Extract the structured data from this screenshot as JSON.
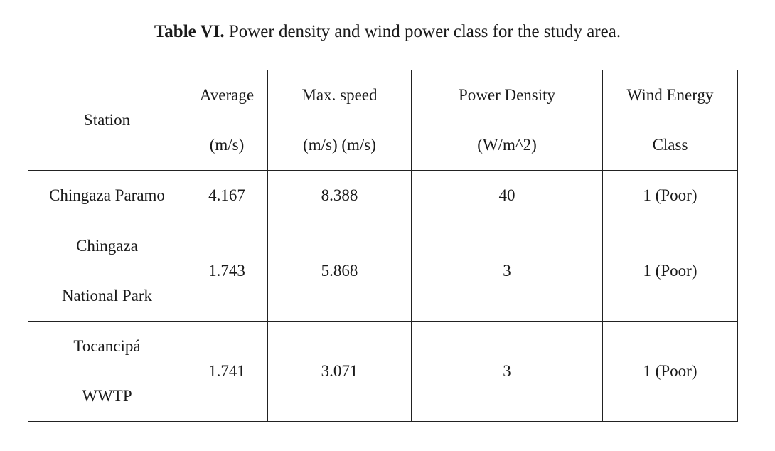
{
  "caption": {
    "label": "Table VI.",
    "text": "Power density and wind power class for the study area."
  },
  "table": {
    "headers": [
      {
        "lines": [
          "Station"
        ]
      },
      {
        "lines": [
          "Average",
          "(m/s)"
        ]
      },
      {
        "lines": [
          "Max. speed",
          "(m/s) (m/s)"
        ]
      },
      {
        "lines": [
          "Power Density",
          "(W/m^2)"
        ]
      },
      {
        "lines": [
          "Wind Energy",
          "Class"
        ]
      }
    ],
    "rows": [
      {
        "station": [
          "Chingaza Paramo"
        ],
        "average": "4.167",
        "max_speed": "8.388",
        "power_density": "40",
        "wind_class": "1 (Poor)"
      },
      {
        "station": [
          "Chingaza",
          "National Park"
        ],
        "average": "1.743",
        "max_speed": "5.868",
        "power_density": "3",
        "wind_class": "1 (Poor)"
      },
      {
        "station": [
          "Tocancipá",
          "WWTP"
        ],
        "average": "1.741",
        "max_speed": "3.071",
        "power_density": "3",
        "wind_class": "1 (Poor)"
      }
    ]
  }
}
